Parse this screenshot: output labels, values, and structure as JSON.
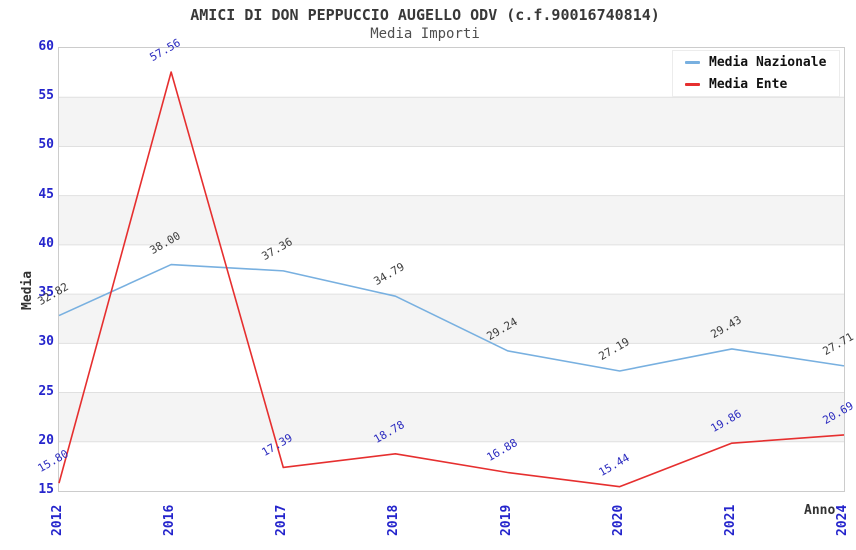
{
  "title": "AMICI DI DON PEPPUCCIO AUGELLO ODV (c.f.90016740814)",
  "subtitle": "Media Importi",
  "chart_data": {
    "type": "line",
    "title": "AMICI DI DON PEPPUCCIO AUGELLO ODV (c.f.90016740814)",
    "subtitle": "Media Importi",
    "xlabel": "Anno",
    "ylabel": "Media",
    "categories": [
      "2012",
      "2016",
      "2017",
      "2018",
      "2019",
      "2020",
      "2021",
      "2024"
    ],
    "series": [
      {
        "name": "Media Nazionale",
        "color": "#78b0e0",
        "label_color": "#3d3d3d",
        "values": [
          32.82,
          38.0,
          37.36,
          34.79,
          29.24,
          27.19,
          29.43,
          27.71
        ],
        "labels": [
          "32.82",
          "38.00",
          "37.36",
          "34.79",
          "29.24",
          "27.19",
          "29.43",
          "27.71"
        ]
      },
      {
        "name": "Media Ente",
        "color": "#e62f2f",
        "label_color": "#2b2bbf",
        "values": [
          15.8,
          57.56,
          17.39,
          18.78,
          16.88,
          15.44,
          19.86,
          20.69
        ],
        "labels": [
          "15.80",
          "57.56",
          "17.39",
          "18.78",
          "16.88",
          "15.44",
          "19.86",
          "20.69"
        ]
      }
    ],
    "ylim": [
      15,
      60
    ],
    "yticks": [
      15,
      20,
      25,
      30,
      35,
      40,
      45,
      50,
      55,
      60
    ],
    "band_fill": "#f4f4f4",
    "gridline_color": "#e0e0e0",
    "tick_label_color": "#2525cc",
    "grid": "horizontal alternating bands",
    "legend_position": "top-right"
  }
}
